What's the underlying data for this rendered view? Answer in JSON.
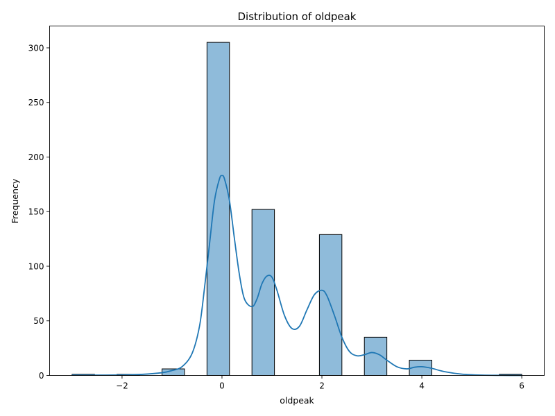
{
  "chart_data": {
    "type": "bar",
    "title": "Distribution of oldpeak",
    "xlabel": "oldpeak",
    "ylabel": "Frequency",
    "xlim": [
      -3.45,
      6.45
    ],
    "ylim": [
      0,
      320
    ],
    "x_ticks": [
      -2,
      0,
      2,
      4,
      6
    ],
    "x_tick_labels": [
      "−2",
      "0",
      "2",
      "4",
      "6"
    ],
    "y_ticks": [
      0,
      50,
      100,
      150,
      200,
      250,
      300
    ],
    "y_tick_labels": [
      "0",
      "50",
      "100",
      "150",
      "200",
      "250",
      "300"
    ],
    "grid": false,
    "legend": "none",
    "bins": [
      {
        "x0": -3.0,
        "x1": -2.55,
        "value": 1
      },
      {
        "x0": -2.1,
        "x1": -1.65,
        "value": 1
      },
      {
        "x0": -1.2,
        "x1": -0.75,
        "value": 6
      },
      {
        "x0": -0.3,
        "x1": 0.15,
        "value": 305
      },
      {
        "x0": 0.6,
        "x1": 1.05,
        "value": 152
      },
      {
        "x0": 1.95,
        "x1": 2.4,
        "value": 129
      },
      {
        "x0": 2.85,
        "x1": 3.3,
        "value": 35
      },
      {
        "x0": 3.75,
        "x1": 4.2,
        "value": 14
      },
      {
        "x0": 5.55,
        "x1": 6.0,
        "value": 1
      }
    ],
    "kde": {
      "x": [
        -3.0,
        -2.5,
        -2.0,
        -1.6,
        -1.2,
        -1.0,
        -0.8,
        -0.6,
        -0.45,
        -0.35,
        -0.25,
        -0.15,
        -0.05,
        0.0,
        0.05,
        0.15,
        0.25,
        0.35,
        0.45,
        0.6,
        0.7,
        0.8,
        0.9,
        1.0,
        1.1,
        1.25,
        1.4,
        1.55,
        1.7,
        1.85,
        2.0,
        2.1,
        2.25,
        2.4,
        2.55,
        2.7,
        2.85,
        3.0,
        3.15,
        3.3,
        3.5,
        3.7,
        3.85,
        4.0,
        4.2,
        4.45,
        4.8,
        5.2,
        5.6,
        6.0
      ],
      "y": [
        0.3,
        0.3,
        0.5,
        1.0,
        2.5,
        4.5,
        8,
        20,
        45,
        80,
        120,
        160,
        180,
        183,
        180,
        160,
        125,
        92,
        70,
        63,
        70,
        84,
        91,
        90,
        78,
        55,
        43,
        45,
        60,
        74,
        78,
        73,
        55,
        35,
        22,
        18,
        19,
        21,
        19,
        14,
        8,
        6,
        7.5,
        8,
        6.5,
        3.5,
        1.2,
        0.3,
        0.1,
        0.0
      ]
    },
    "bar_color": "#8fbbda",
    "bar_edge_color": "#000000",
    "kde_color": "#1f77b4"
  }
}
